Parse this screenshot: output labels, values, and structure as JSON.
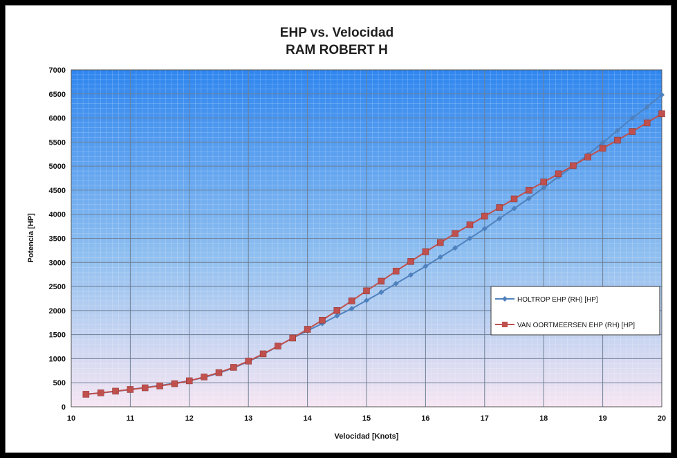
{
  "chart_data": {
    "type": "line",
    "title": "EHP vs. Velocidad",
    "subtitle": "RAM ROBERT H",
    "xlabel": "Velocidad [Knots]",
    "ylabel": "Potencia [HP]",
    "xlim": [
      10,
      20
    ],
    "ylim": [
      0,
      7000
    ],
    "x_ticks": [
      "10",
      "11",
      "12",
      "13",
      "14",
      "15",
      "16",
      "17",
      "18",
      "19",
      "20"
    ],
    "y_ticks": [
      "0",
      "500",
      "1000",
      "1500",
      "2000",
      "2500",
      "3000",
      "3500",
      "4000",
      "4500",
      "5000",
      "5500",
      "6000",
      "6500",
      "7000"
    ],
    "grid": true,
    "legend_position": "right",
    "x": [
      10.25,
      10.5,
      10.75,
      11,
      11.25,
      11.5,
      11.75,
      12,
      12.25,
      12.5,
      12.75,
      13,
      13.25,
      13.5,
      13.75,
      14,
      14.25,
      14.5,
      14.75,
      15,
      15.25,
      15.5,
      15.75,
      16,
      16.25,
      16.5,
      16.75,
      17,
      17.25,
      17.5,
      17.75,
      18,
      18.25,
      18.5,
      18.75,
      19,
      19.25,
      19.5,
      19.75,
      20
    ],
    "series": [
      {
        "name": "HOLTROP EHP  (RH) [HP]",
        "color": "#4f81bd",
        "marker": "diamond",
        "values": [
          260,
          290,
          320,
          360,
          400,
          440,
          490,
          540,
          610,
          700,
          810,
          940,
          1090,
          1260,
          1430,
          1580,
          1730,
          1890,
          2040,
          2210,
          2380,
          2560,
          2740,
          2920,
          3110,
          3300,
          3500,
          3700,
          3910,
          4120,
          4330,
          4550,
          4780,
          5000,
          5240,
          5490,
          5740,
          6000,
          6230,
          6480
        ]
      },
      {
        "name": "VAN OORTMEERSEN EHP  (RH) [HP]",
        "color": "#c0504d",
        "marker": "square",
        "values": [
          260,
          290,
          325,
          360,
          395,
          435,
          480,
          540,
          620,
          710,
          820,
          950,
          1100,
          1260,
          1430,
          1610,
          1800,
          2000,
          2200,
          2410,
          2610,
          2820,
          3020,
          3220,
          3410,
          3600,
          3780,
          3960,
          4140,
          4320,
          4500,
          4670,
          4840,
          5010,
          5190,
          5370,
          5540,
          5720,
          5900,
          6090
        ]
      }
    ]
  }
}
